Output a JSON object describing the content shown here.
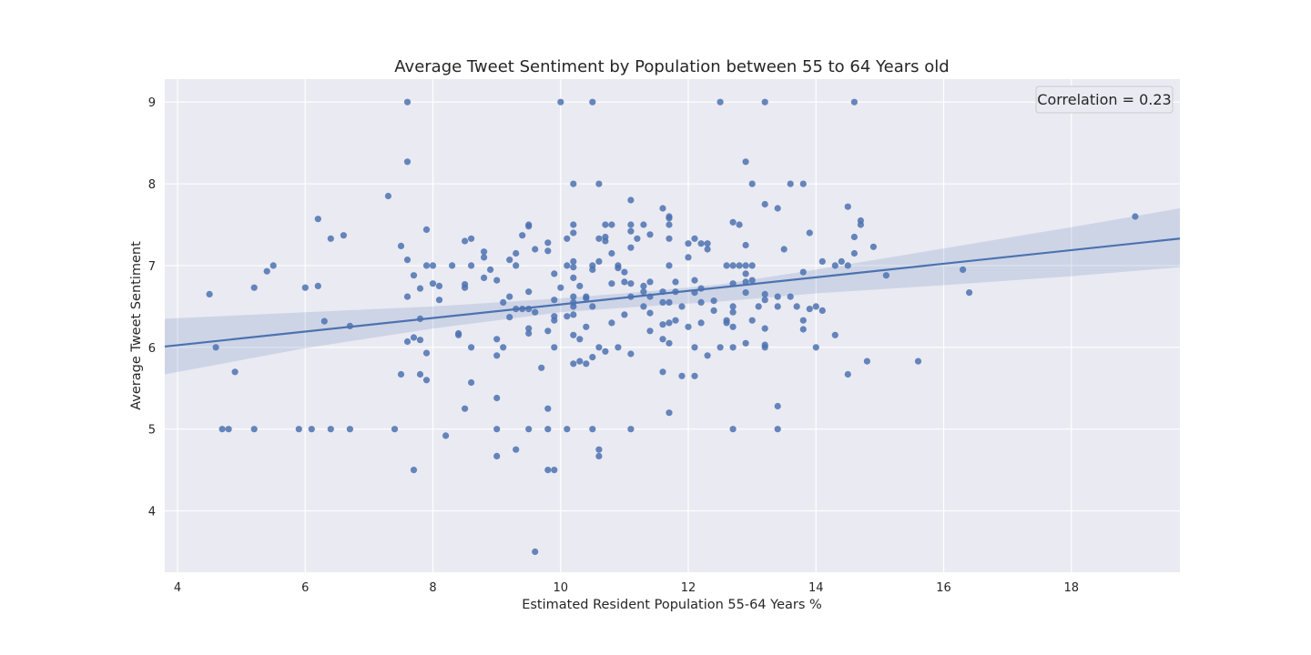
{
  "chart_data": {
    "type": "scatter",
    "title": "Average Tweet Sentiment by Population between 55 to 64 Years old",
    "xlabel": "Estimated Resident Population 55-64 Years %",
    "ylabel": "Average Tweet Sentiment",
    "xlim": [
      3.8,
      19.7
    ],
    "ylim": [
      3.25,
      9.28
    ],
    "xticks": [
      4,
      6,
      8,
      10,
      12,
      14,
      16,
      18
    ],
    "yticks": [
      4,
      5,
      6,
      7,
      8,
      9
    ],
    "grid": true,
    "legend_placement": "top-right",
    "annotation": "Correlation = 0.23",
    "point_color": "#4c72b0",
    "background_color": "#eaeaf2",
    "regression": {
      "x": [
        3.8,
        19.7
      ],
      "y": [
        6.01,
        7.33
      ]
    },
    "confidence_band": {
      "x": [
        3.8,
        6.0,
        8.0,
        10.0,
        11.3,
        12.5,
        14.0,
        16.0,
        18.0,
        19.7
      ],
      "lower": [
        5.67,
        5.99,
        6.23,
        6.43,
        6.5,
        6.56,
        6.66,
        6.76,
        6.87,
        6.98
      ],
      "upper": [
        6.35,
        6.43,
        6.5,
        6.6,
        6.68,
        6.77,
        6.95,
        7.21,
        7.47,
        7.7
      ]
    },
    "points": [
      [
        4.5,
        6.65
      ],
      [
        4.6,
        6.0
      ],
      [
        4.7,
        5.0
      ],
      [
        4.8,
        5.0
      ],
      [
        4.9,
        5.7
      ],
      [
        5.2,
        6.73
      ],
      [
        5.2,
        5.0
      ],
      [
        5.4,
        6.93
      ],
      [
        5.5,
        7.0
      ],
      [
        5.9,
        5.0
      ],
      [
        6.0,
        6.73
      ],
      [
        6.1,
        5.0
      ],
      [
        6.2,
        7.57
      ],
      [
        6.2,
        6.75
      ],
      [
        6.3,
        6.32
      ],
      [
        6.4,
        7.33
      ],
      [
        6.4,
        5.0
      ],
      [
        6.6,
        7.37
      ],
      [
        6.7,
        6.26
      ],
      [
        6.7,
        5.0
      ],
      [
        7.3,
        7.85
      ],
      [
        7.4,
        5.0
      ],
      [
        7.5,
        7.24
      ],
      [
        7.5,
        5.67
      ],
      [
        7.6,
        9.0
      ],
      [
        7.6,
        8.27
      ],
      [
        7.6,
        7.07
      ],
      [
        7.6,
        6.62
      ],
      [
        7.6,
        6.07
      ],
      [
        7.7,
        6.88
      ],
      [
        7.7,
        6.12
      ],
      [
        7.7,
        4.5
      ],
      [
        7.8,
        6.72
      ],
      [
        7.8,
        6.35
      ],
      [
        7.8,
        6.09
      ],
      [
        7.8,
        5.67
      ],
      [
        7.9,
        7.44
      ],
      [
        7.9,
        7.0
      ],
      [
        7.9,
        5.93
      ],
      [
        7.9,
        5.6
      ],
      [
        8.0,
        6.78
      ],
      [
        8.0,
        7.0
      ],
      [
        8.1,
        6.75
      ],
      [
        8.1,
        6.58
      ],
      [
        8.2,
        4.92
      ],
      [
        8.3,
        7.0
      ],
      [
        8.4,
        6.17
      ],
      [
        8.4,
        6.15
      ],
      [
        8.5,
        7.3
      ],
      [
        8.5,
        6.77
      ],
      [
        8.5,
        6.73
      ],
      [
        8.5,
        5.25
      ],
      [
        8.6,
        7.33
      ],
      [
        8.6,
        7.0
      ],
      [
        8.6,
        6.0
      ],
      [
        8.6,
        5.57
      ],
      [
        8.8,
        7.17
      ],
      [
        8.8,
        7.1
      ],
      [
        8.8,
        6.85
      ],
      [
        8.9,
        6.95
      ],
      [
        9.0,
        6.82
      ],
      [
        9.0,
        6.1
      ],
      [
        9.0,
        5.9
      ],
      [
        9.0,
        5.38
      ],
      [
        9.0,
        5.0
      ],
      [
        9.0,
        4.67
      ],
      [
        9.1,
        6.55
      ],
      [
        9.1,
        6.0
      ],
      [
        9.2,
        7.07
      ],
      [
        9.2,
        6.62
      ],
      [
        9.2,
        6.37
      ],
      [
        9.3,
        7.15
      ],
      [
        9.3,
        7.0
      ],
      [
        9.3,
        6.47
      ],
      [
        9.3,
        4.75
      ],
      [
        9.4,
        7.37
      ],
      [
        9.4,
        6.47
      ],
      [
        9.5,
        7.5
      ],
      [
        9.5,
        7.48
      ],
      [
        9.5,
        6.68
      ],
      [
        9.5,
        6.47
      ],
      [
        9.5,
        6.23
      ],
      [
        9.5,
        6.17
      ],
      [
        9.5,
        5.0
      ],
      [
        9.6,
        7.2
      ],
      [
        9.6,
        6.43
      ],
      [
        9.6,
        3.5
      ],
      [
        9.7,
        5.75
      ],
      [
        9.8,
        7.28
      ],
      [
        9.8,
        7.18
      ],
      [
        9.8,
        6.2
      ],
      [
        9.8,
        5.25
      ],
      [
        9.8,
        5.0
      ],
      [
        9.8,
        4.5
      ],
      [
        9.9,
        6.9
      ],
      [
        9.9,
        6.58
      ],
      [
        9.9,
        6.38
      ],
      [
        9.9,
        6.33
      ],
      [
        9.9,
        6.0
      ],
      [
        9.9,
        4.5
      ],
      [
        10.0,
        9.0
      ],
      [
        10.0,
        6.73
      ],
      [
        10.1,
        7.33
      ],
      [
        10.1,
        7.0
      ],
      [
        10.1,
        6.38
      ],
      [
        10.1,
        5.0
      ],
      [
        10.2,
        8.0
      ],
      [
        10.2,
        7.5
      ],
      [
        10.2,
        7.4
      ],
      [
        10.2,
        7.05
      ],
      [
        10.2,
        6.98
      ],
      [
        10.2,
        6.85
      ],
      [
        10.2,
        6.62
      ],
      [
        10.2,
        6.55
      ],
      [
        10.2,
        6.5
      ],
      [
        10.2,
        6.4
      ],
      [
        10.2,
        6.15
      ],
      [
        10.2,
        5.8
      ],
      [
        10.3,
        6.75
      ],
      [
        10.3,
        6.1
      ],
      [
        10.3,
        5.83
      ],
      [
        10.4,
        6.62
      ],
      [
        10.4,
        6.25
      ],
      [
        10.4,
        6.6
      ],
      [
        10.4,
        5.8
      ],
      [
        10.5,
        9.0
      ],
      [
        10.5,
        7.0
      ],
      [
        10.5,
        6.95
      ],
      [
        10.5,
        6.5
      ],
      [
        10.5,
        5.88
      ],
      [
        10.5,
        5.0
      ],
      [
        10.6,
        8.0
      ],
      [
        10.6,
        7.33
      ],
      [
        10.6,
        7.05
      ],
      [
        10.6,
        6.0
      ],
      [
        10.6,
        4.75
      ],
      [
        10.6,
        4.67
      ],
      [
        10.7,
        7.5
      ],
      [
        10.7,
        7.35
      ],
      [
        10.7,
        7.3
      ],
      [
        10.7,
        5.95
      ],
      [
        10.8,
        7.5
      ],
      [
        10.8,
        7.15
      ],
      [
        10.8,
        6.78
      ],
      [
        10.8,
        6.3
      ],
      [
        10.9,
        7.0
      ],
      [
        10.9,
        6.97
      ],
      [
        10.9,
        6.0
      ],
      [
        11.0,
        6.92
      ],
      [
        11.0,
        6.8
      ],
      [
        11.0,
        6.4
      ],
      [
        11.1,
        7.8
      ],
      [
        11.1,
        7.5
      ],
      [
        11.1,
        7.42
      ],
      [
        11.1,
        7.22
      ],
      [
        11.1,
        6.78
      ],
      [
        11.1,
        6.62
      ],
      [
        11.1,
        5.92
      ],
      [
        11.1,
        5.0
      ],
      [
        11.2,
        7.33
      ],
      [
        11.3,
        7.5
      ],
      [
        11.3,
        6.75
      ],
      [
        11.3,
        6.68
      ],
      [
        11.3,
        6.5
      ],
      [
        11.4,
        7.38
      ],
      [
        11.4,
        6.8
      ],
      [
        11.4,
        6.62
      ],
      [
        11.4,
        6.42
      ],
      [
        11.4,
        6.2
      ],
      [
        11.6,
        7.7
      ],
      [
        11.6,
        6.68
      ],
      [
        11.6,
        6.55
      ],
      [
        11.6,
        6.28
      ],
      [
        11.6,
        6.1
      ],
      [
        11.6,
        5.7
      ],
      [
        11.7,
        7.6
      ],
      [
        11.7,
        7.58
      ],
      [
        11.7,
        7.5
      ],
      [
        11.7,
        7.33
      ],
      [
        11.7,
        7.0
      ],
      [
        11.7,
        6.55
      ],
      [
        11.7,
        6.3
      ],
      [
        11.7,
        6.05
      ],
      [
        11.7,
        5.2
      ],
      [
        11.8,
        6.8
      ],
      [
        11.8,
        6.68
      ],
      [
        11.8,
        6.33
      ],
      [
        11.9,
        6.5
      ],
      [
        11.9,
        5.65
      ],
      [
        12.0,
        7.27
      ],
      [
        12.0,
        7.1
      ],
      [
        12.0,
        6.25
      ],
      [
        12.1,
        7.33
      ],
      [
        12.1,
        6.82
      ],
      [
        12.1,
        6.67
      ],
      [
        12.1,
        6.0
      ],
      [
        12.1,
        5.65
      ],
      [
        12.2,
        7.27
      ],
      [
        12.2,
        6.72
      ],
      [
        12.2,
        6.55
      ],
      [
        12.2,
        6.3
      ],
      [
        12.3,
        7.27
      ],
      [
        12.3,
        7.2
      ],
      [
        12.3,
        5.9
      ],
      [
        12.4,
        6.57
      ],
      [
        12.4,
        6.45
      ],
      [
        12.5,
        9.0
      ],
      [
        12.5,
        6.0
      ],
      [
        12.6,
        7.0
      ],
      [
        12.6,
        6.33
      ],
      [
        12.6,
        6.3
      ],
      [
        12.7,
        7.53
      ],
      [
        12.7,
        7.0
      ],
      [
        12.7,
        6.78
      ],
      [
        12.7,
        6.5
      ],
      [
        12.7,
        6.43
      ],
      [
        12.7,
        6.25
      ],
      [
        12.7,
        6.0
      ],
      [
        12.7,
        5.0
      ],
      [
        12.8,
        7.5
      ],
      [
        12.8,
        7.0
      ],
      [
        12.9,
        8.27
      ],
      [
        12.9,
        7.25
      ],
      [
        12.9,
        7.0
      ],
      [
        12.9,
        6.9
      ],
      [
        12.9,
        6.8
      ],
      [
        12.9,
        6.67
      ],
      [
        12.9,
        6.05
      ],
      [
        13.0,
        8.0
      ],
      [
        13.0,
        7.0
      ],
      [
        13.0,
        6.82
      ],
      [
        13.0,
        6.33
      ],
      [
        13.1,
        6.5
      ],
      [
        13.2,
        9.0
      ],
      [
        13.2,
        7.75
      ],
      [
        13.2,
        6.65
      ],
      [
        13.2,
        6.58
      ],
      [
        13.2,
        6.23
      ],
      [
        13.2,
        6.03
      ],
      [
        13.2,
        6.0
      ],
      [
        13.4,
        7.7
      ],
      [
        13.4,
        6.62
      ],
      [
        13.4,
        6.5
      ],
      [
        13.4,
        5.28
      ],
      [
        13.4,
        5.0
      ],
      [
        13.5,
        7.2
      ],
      [
        13.6,
        8.0
      ],
      [
        13.6,
        6.62
      ],
      [
        13.7,
        6.5
      ],
      [
        13.8,
        8.0
      ],
      [
        13.8,
        6.92
      ],
      [
        13.8,
        6.33
      ],
      [
        13.8,
        6.22
      ],
      [
        13.9,
        7.4
      ],
      [
        13.9,
        6.47
      ],
      [
        14.0,
        6.5
      ],
      [
        14.0,
        6.0
      ],
      [
        14.1,
        7.05
      ],
      [
        14.1,
        6.45
      ],
      [
        14.3,
        7.0
      ],
      [
        14.3,
        6.15
      ],
      [
        14.4,
        7.05
      ],
      [
        14.5,
        7.72
      ],
      [
        14.5,
        7.0
      ],
      [
        14.5,
        5.67
      ],
      [
        14.6,
        9.0
      ],
      [
        14.6,
        7.35
      ],
      [
        14.6,
        7.15
      ],
      [
        14.7,
        7.55
      ],
      [
        14.7,
        7.5
      ],
      [
        14.8,
        5.83
      ],
      [
        14.9,
        7.23
      ],
      [
        15.1,
        6.88
      ],
      [
        15.6,
        5.83
      ],
      [
        16.3,
        6.95
      ],
      [
        16.4,
        6.67
      ],
      [
        19.0,
        7.6
      ]
    ]
  }
}
